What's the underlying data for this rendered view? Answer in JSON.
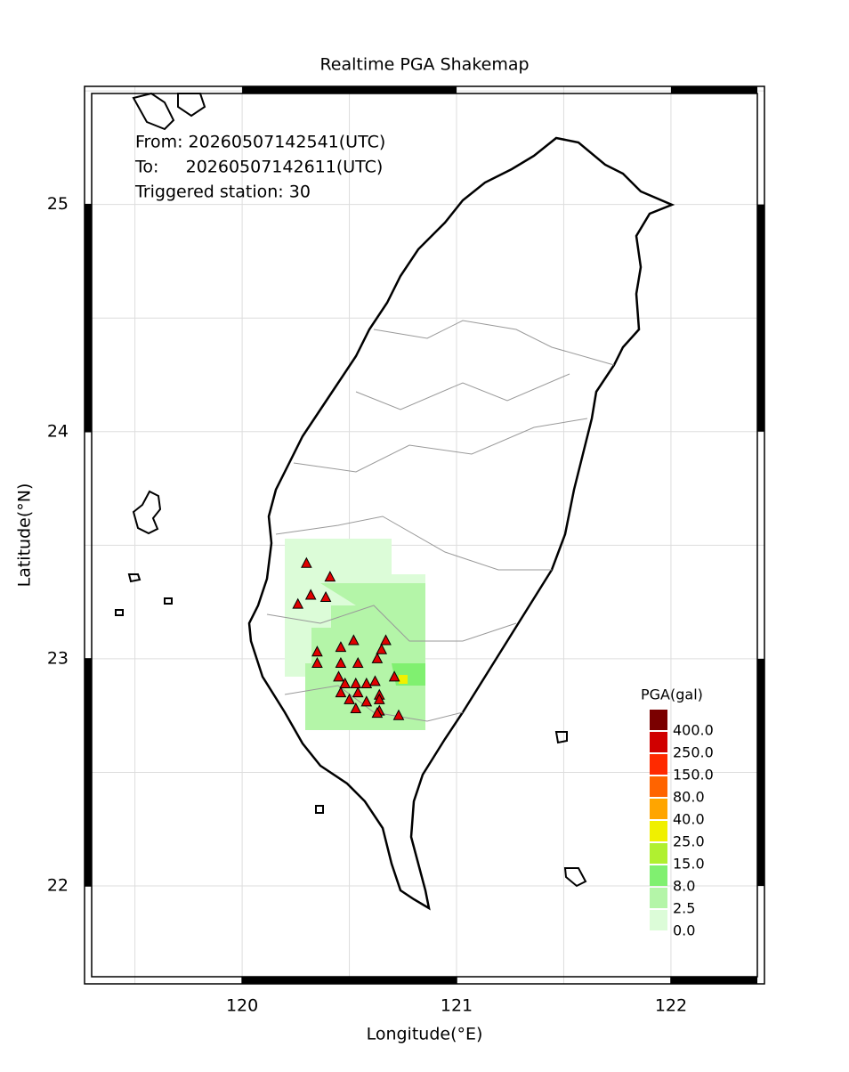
{
  "chart_data": {
    "type": "scatter",
    "title": "Realtime PGA Shakemap",
    "annotations": [
      "From: 20260507142541(UTC)",
      "To:     20260507142611(UTC)",
      "Triggered station: 30"
    ],
    "x_label": "Longitude(°E)",
    "y_label": "Latitude(°N)",
    "xlim": [
      119.265,
      122.436
    ],
    "ylim": [
      21.569,
      25.52
    ],
    "xticks": [
      120,
      121,
      122
    ],
    "yticks": [
      22,
      23,
      24,
      25
    ],
    "series": [
      {
        "color": "#e00000",
        "x": [
          120.3,
          120.41,
          120.32,
          120.39,
          120.26,
          120.52,
          120.67,
          120.46,
          120.35,
          120.65,
          120.63,
          120.35,
          120.46,
          120.54,
          120.71,
          120.45,
          120.48,
          120.53,
          120.58,
          120.62,
          120.46,
          120.54,
          120.64,
          120.5,
          120.58,
          120.64,
          120.53,
          120.64,
          120.63,
          120.73
        ],
        "values": [
          23.42,
          23.36,
          23.28,
          23.27,
          23.24,
          23.08,
          23.08,
          23.05,
          23.03,
          23.04,
          23.0,
          22.98,
          22.98,
          22.98,
          22.92,
          22.92,
          22.89,
          22.89,
          22.89,
          22.9,
          22.85,
          22.85,
          22.84,
          22.82,
          22.81,
          22.82,
          22.78,
          22.77,
          22.76,
          22.75
        ]
      }
    ],
    "legend": {
      "title": "PGA(gal)",
      "levels": [
        {
          "value": 400,
          "label": "400.0"
        },
        {
          "value": 250,
          "label": "250.0"
        },
        {
          "value": 150,
          "label": "150.0"
        },
        {
          "value": 80,
          "label": "80.0"
        },
        {
          "value": 40,
          "label": "40.0"
        },
        {
          "value": 25,
          "label": "25.0"
        },
        {
          "value": 15,
          "label": "15.0"
        },
        {
          "value": 8,
          "label": "8.0"
        },
        {
          "value": 2.5,
          "label": "2.5"
        },
        {
          "value": 0,
          "label": "0.0"
        }
      ],
      "colors": [
        "#7a0000",
        "#d00000",
        "#ff2a00",
        "#ff6400",
        "#ffa500",
        "#f0f000",
        "#b0f030",
        "#80f070",
        "#b4f5a8",
        "#dcfcd8"
      ]
    }
  }
}
